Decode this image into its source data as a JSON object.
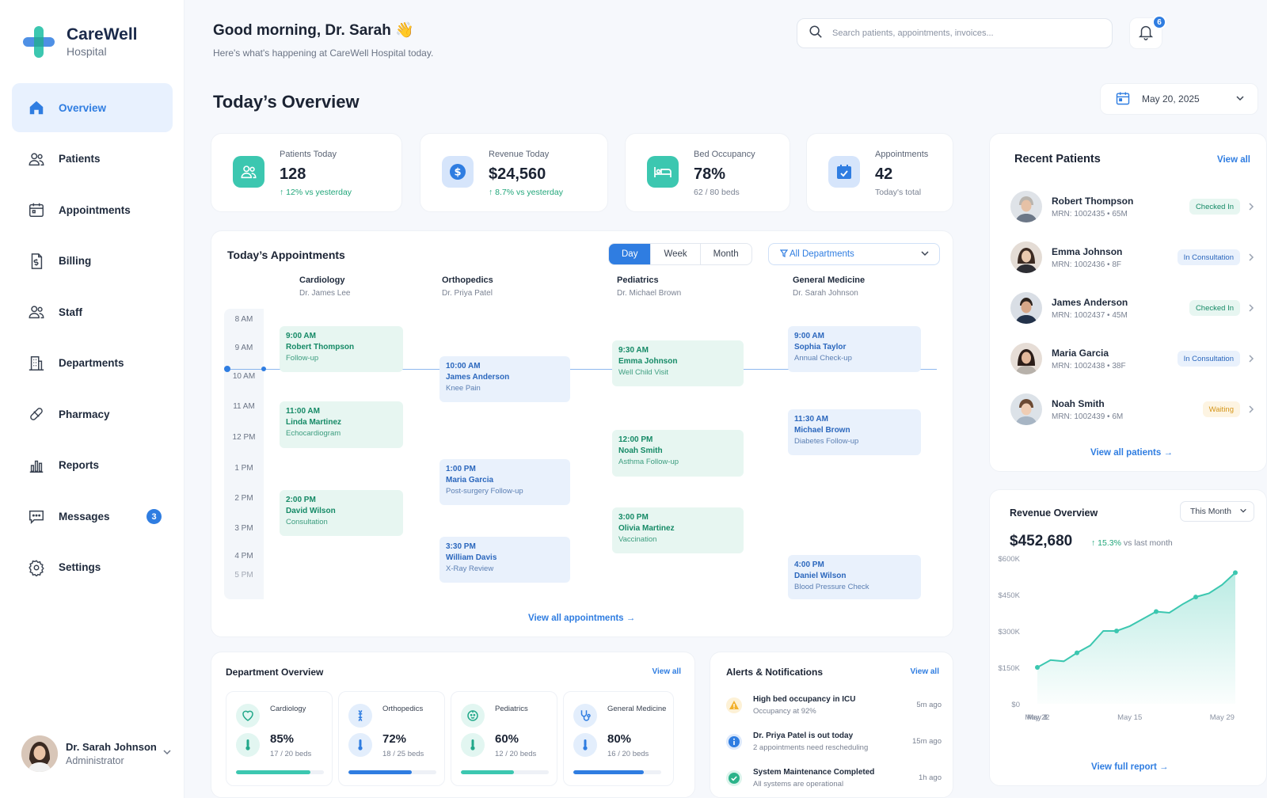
{
  "brand": {
    "name": "CareWell",
    "sub": "Hospital"
  },
  "nav": [
    {
      "label": "Overview"
    },
    {
      "label": "Patients"
    },
    {
      "label": "Appointments"
    },
    {
      "label": "Billing"
    },
    {
      "label": "Staff"
    },
    {
      "label": "Departments"
    },
    {
      "label": "Pharmacy"
    },
    {
      "label": "Reports"
    },
    {
      "label": "Messages",
      "badge": "3"
    },
    {
      "label": "Settings"
    }
  ],
  "user": {
    "name": "Dr. Sarah Johnson",
    "role": "Administrator"
  },
  "header": {
    "greeting": "Good morning, Dr. Sarah 👋",
    "subtitle": "Here's what's happening at CareWell Hospital today.",
    "search_placeholder": "Search patients, appointments, invoices...",
    "notifications": "6"
  },
  "page": {
    "title": "Today’s Overview",
    "date": "May 20, 2025"
  },
  "stats": [
    {
      "label": "Patients Today",
      "value": "128",
      "sub": "↑ 12% vs yesterday",
      "up": true
    },
    {
      "label": "Revenue Today",
      "value": "$24,560",
      "sub": "↑ 8.7% vs yesterday",
      "up": true
    },
    {
      "label": "Bed Occupancy",
      "value": "78%",
      "sub": "62 / 80 beds",
      "up": false
    },
    {
      "label": "Appointments",
      "value": "42",
      "sub": "Today's total",
      "up": false
    }
  ],
  "appointments": {
    "title": "Today’s Appointments",
    "views": [
      "Day",
      "Week",
      "Month"
    ],
    "active_view": "Day",
    "filter": "All Departments",
    "columns": [
      {
        "name": "Cardiology",
        "doctor": "Dr. James Lee"
      },
      {
        "name": "Orthopedics",
        "doctor": "Dr. Priya Patel"
      },
      {
        "name": "Pediatrics",
        "doctor": "Dr. Michael Brown"
      },
      {
        "name": "General Medicine",
        "doctor": "Dr. Sarah Johnson"
      }
    ],
    "times": [
      "8 AM",
      "9 AM",
      "10 AM",
      "11 AM",
      "12 PM",
      "1 PM",
      "2 PM",
      "3 PM",
      "4 PM",
      "5 PM"
    ],
    "events": [
      {
        "time": "9:00 AM",
        "patient": "Robert Thompson",
        "type": "Follow-up"
      },
      {
        "time": "11:00 AM",
        "patient": "Linda Martinez",
        "type": "Echocardiogram"
      },
      {
        "time": "2:00 PM",
        "patient": "David Wilson",
        "type": "Consultation"
      },
      {
        "time": "10:00 AM",
        "patient": "James Anderson",
        "type": "Knee Pain"
      },
      {
        "time": "1:00 PM",
        "patient": "Maria Garcia",
        "type": "Post-surgery Follow-up"
      },
      {
        "time": "3:30 PM",
        "patient": "William Davis",
        "type": "X-Ray Review"
      },
      {
        "time": "9:30 AM",
        "patient": "Emma Johnson",
        "type": "Well Child Visit"
      },
      {
        "time": "12:00 PM",
        "patient": "Noah Smith",
        "type": "Asthma Follow-up"
      },
      {
        "time": "3:00 PM",
        "patient": "Olivia Martinez",
        "type": "Vaccination"
      },
      {
        "time": "9:00 AM",
        "patient": "Sophia Taylor",
        "type": "Annual Check-up"
      },
      {
        "time": "11:30 AM",
        "patient": "Michael Brown",
        "type": "Diabetes Follow-up"
      },
      {
        "time": "4:00 PM",
        "patient": "Daniel Wilson",
        "type": "Blood Pressure Check"
      }
    ],
    "view_all": "View all appointments →"
  },
  "recent_patients": {
    "title": "Recent Patients",
    "view_all": "View all",
    "items": [
      {
        "name": "Robert Thompson",
        "meta": "MRN: 1002435 • 65M",
        "status": "Checked In"
      },
      {
        "name": "Emma Johnson",
        "meta": "MRN: 1002436 • 8F",
        "status": "In Consultation"
      },
      {
        "name": "James Anderson",
        "meta": "MRN: 1002437 • 45M",
        "status": "Checked In"
      },
      {
        "name": "Maria Garcia",
        "meta": "MRN: 1002438 • 38F",
        "status": "In Consultation"
      },
      {
        "name": "Noah Smith",
        "meta": "MRN: 1002439 • 6M",
        "status": "Waiting"
      }
    ],
    "footer": "View all patients →"
  },
  "revenue": {
    "title": "Revenue Overview",
    "period": "This Month",
    "total": "$452,680",
    "change": "↑ 15.3%",
    "change_suffix": "vs last month",
    "footer": "View full report →"
  },
  "chart_data": {
    "type": "area",
    "x": [
      "May 1",
      "May 3",
      "May 5",
      "May 7",
      "May 9",
      "May 11",
      "May 13",
      "May 15",
      "May 17",
      "May 19",
      "May 21",
      "May 23",
      "May 25",
      "May 27",
      "May 29",
      "May 31"
    ],
    "xticks": [
      "May 1",
      "May 8",
      "May 15",
      "May 22",
      "May 29"
    ],
    "yticks": [
      "$600K",
      "$450K",
      "$300K",
      "$150K",
      "$0"
    ],
    "series": [
      {
        "values": [
          150000,
          180000,
          175000,
          210000,
          240000,
          300000,
          300000,
          320000,
          350000,
          380000,
          375000,
          410000,
          440000,
          455000,
          490000,
          540000
        ]
      }
    ],
    "ylim": [
      0,
      600000
    ],
    "color": "#3cc7b0"
  },
  "departments": {
    "title": "Department Overview",
    "view_all": "View all",
    "items": [
      {
        "name": "Cardiology",
        "value": "85%",
        "beds": "17 / 20 beds",
        "pct": 0.85,
        "color": "#3cc7b0"
      },
      {
        "name": "Orthopedics",
        "value": "72%",
        "beds": "18 / 25 beds",
        "pct": 0.72,
        "color": "#2f7de1"
      },
      {
        "name": "Pediatrics",
        "value": "60%",
        "beds": "12 / 20 beds",
        "pct": 0.6,
        "color": "#3cc7b0"
      },
      {
        "name": "General Medicine",
        "value": "80%",
        "beds": "16 / 20 beds",
        "pct": 0.8,
        "color": "#2f7de1"
      }
    ]
  },
  "alerts": {
    "title": "Alerts & Notifications",
    "view_all": "View all",
    "items": [
      {
        "title": "High bed occupancy in ICU",
        "sub": "Occupancy at 92%",
        "time": "5m ago",
        "kind": "warning"
      },
      {
        "title": "Dr. Priya Patel is out today",
        "sub": "2 appointments need rescheduling",
        "time": "15m ago",
        "kind": "info"
      },
      {
        "title": "System Maintenance Completed",
        "sub": "All systems are operational",
        "time": "1h ago",
        "kind": "success"
      }
    ]
  }
}
